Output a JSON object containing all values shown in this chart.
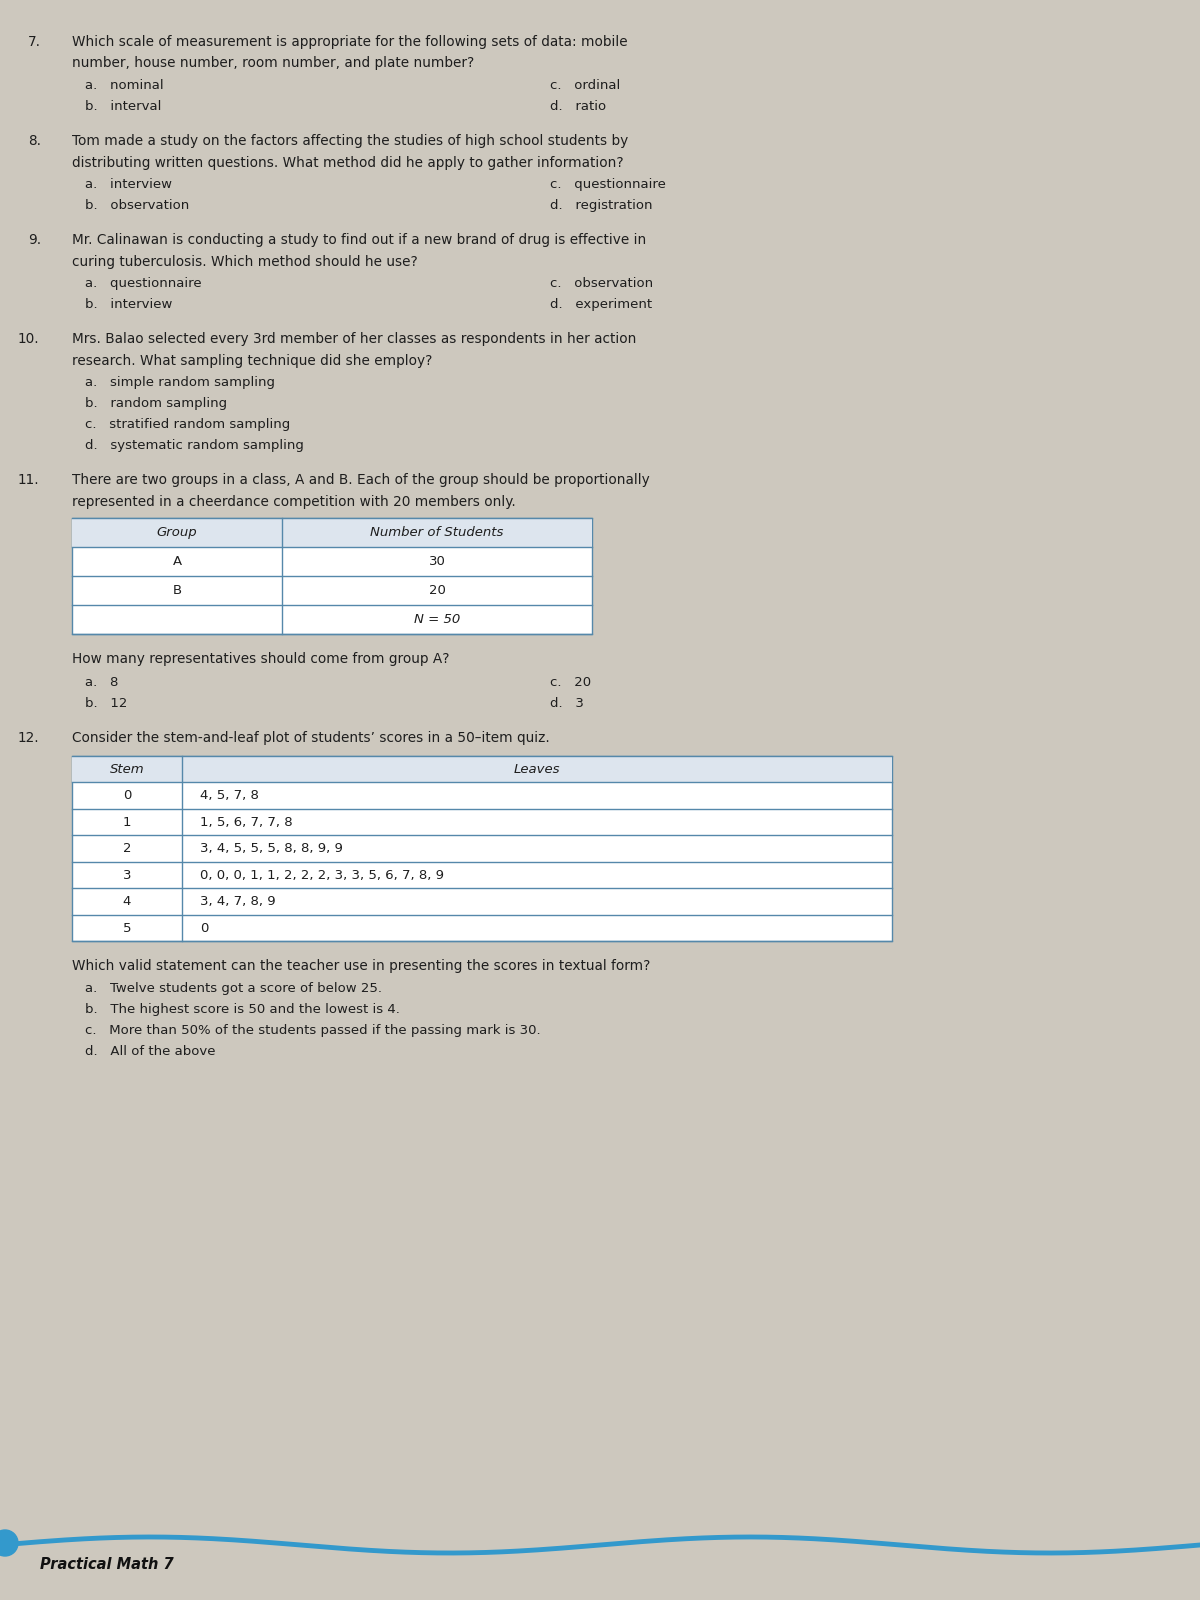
{
  "bg_color": "#cdc8be",
  "page_color": "#d8d3c9",
  "text_color": "#1e1e1e",
  "table_border_color": "#5588aa",
  "questions": [
    {
      "num": "7.",
      "text": "Which scale of measurement is appropriate for the following sets of data: mobile\nnumber, house number, room number, and plate number?",
      "choices_left": [
        "a.   nominal",
        "b.   interval"
      ],
      "choices_right": [
        "c.   ordinal",
        "d.   ratio"
      ]
    },
    {
      "num": "8.",
      "text": "Tom made a study on the factors affecting the studies of high school students by\ndistributing written questions. What method did he apply to gather information?",
      "choices_left": [
        "a.   interview",
        "b.   observation"
      ],
      "choices_right": [
        "c.   questionnaire",
        "d.   registration"
      ]
    },
    {
      "num": "9.",
      "text": "Mr. Calinawan is conducting a study to find out if a new brand of drug is effective in\ncuring tuberculosis. Which method should he use?",
      "choices_left": [
        "a.   questionnaire",
        "b.   interview"
      ],
      "choices_right": [
        "c.   observation",
        "d.   experiment"
      ]
    },
    {
      "num": "10.",
      "text": "Mrs. Balao selected every 3rd member of her classes as respondents in her action\nresearch. What sampling technique did she employ?",
      "choices_single": [
        "a.   simple random sampling",
        "b.   random sampling",
        "c.   stratified random sampling",
        "d.   systematic random sampling"
      ]
    },
    {
      "num": "11.",
      "text": "There are two groups in a class, A and B. Each of the group should be proportionally\nrepresented in a cheerdance competition with 20 members only.",
      "table": {
        "headers": [
          "Group",
          "Number of Students"
        ],
        "rows": [
          [
            "A",
            "30"
          ],
          [
            "B",
            "20"
          ],
          [
            "",
            "N = 50"
          ]
        ]
      },
      "sub_text": "How many representatives should come from group A?",
      "choices_left": [
        "a.   8",
        "b.   12"
      ],
      "choices_right": [
        "c.   20",
        "d.   3"
      ]
    },
    {
      "num": "12.",
      "text": "Consider the stem-and-leaf plot of students’ scores in a 50–item quiz.",
      "stem_table": {
        "headers": [
          "Stem",
          "Leaves"
        ],
        "rows": [
          [
            "0",
            "4, 5, 7, 8"
          ],
          [
            "1",
            "1, 5, 6, 7, 7, 8"
          ],
          [
            "2",
            "3, 4, 5, 5, 5, 8, 8, 9, 9"
          ],
          [
            "3",
            "0, 0, 0, 1, 1, 2, 2, 2, 3, 3, 5, 6, 7, 8, 9"
          ],
          [
            "4",
            "3, 4, 7, 8, 9"
          ],
          [
            "5",
            "0"
          ]
        ]
      },
      "sub_text": "Which valid statement can the teacher use in presenting the scores in textual form?",
      "choices_single": [
        "a.   Twelve students got a score of below 25.",
        "b.   The highest score is 50 and the lowest is 4.",
        "c.   More than 50% of the students passed if the passing mark is 30.",
        "d.   All of the above"
      ]
    }
  ],
  "footer": "Practical Math 7"
}
